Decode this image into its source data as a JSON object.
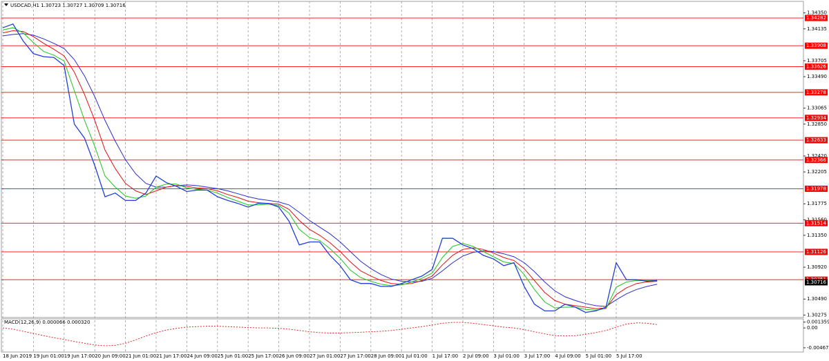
{
  "chart_data": {
    "type": "line",
    "title": "USDCAD,H1  1.30723 1.30727 1.30709 1.30716",
    "categories": [
      "18 Jun 2019",
      null,
      null,
      "19 Jun 01:00",
      null,
      null,
      "19 Jun 17:00",
      null,
      null,
      "20 Jun 09:00",
      null,
      null,
      "21 Jun 01:00",
      null,
      null,
      "21 Jun 17:00",
      null,
      null,
      "24 Jun 09:00",
      null,
      null,
      "25 Jun 01:00",
      null,
      null,
      "25 Jun 17:00",
      null,
      null,
      "26 Jun 09:00",
      null,
      null,
      "27 Jun 01:00",
      null,
      null,
      "27 Jun 17:00",
      null,
      null,
      "28 Jun 09:00",
      null,
      null,
      "1 Jul 01:00",
      null,
      null,
      "1 Jul 17:00",
      null,
      null,
      "2 Jul 09:00",
      null,
      null,
      "3 Jul 01:00",
      null,
      null,
      "3 Jul 17:00",
      null,
      null,
      "4 Jul 09:00",
      null,
      null,
      "5 Jul 01:00",
      null,
      null,
      "5 Jul 17:00",
      null,
      null,
      null,
      null
    ],
    "series": [
      {
        "color": "#1f3fd6",
        "values": [
          1.3415,
          1.342,
          1.3397,
          1.338,
          1.3376,
          1.3375,
          1.3364,
          1.3285,
          1.3266,
          1.3229,
          1.3187,
          1.3192,
          1.3182,
          1.3182,
          1.3192,
          1.3215,
          1.3206,
          1.3201,
          1.3194,
          1.3196,
          1.3196,
          1.3187,
          1.3182,
          1.3178,
          1.3173,
          1.3178,
          1.3178,
          1.3173,
          1.3154,
          1.3122,
          1.3126,
          1.3126,
          1.3108,
          1.3094,
          1.3075,
          1.307,
          1.307,
          1.3066,
          1.3066,
          1.307,
          1.3075,
          1.308,
          1.3089,
          1.3131,
          1.3131,
          1.3122,
          1.3117,
          1.3108,
          1.3103,
          1.3094,
          1.3098,
          1.3066,
          1.3042,
          1.3033,
          1.3033,
          1.3042,
          1.3038,
          1.3031,
          1.3033,
          1.3038,
          1.3098,
          1.3075,
          1.3075,
          1.3073,
          1.3074
        ]
      },
      {
        "color": "#1fc41f",
        "values": [
          1.3412,
          1.3415,
          1.3408,
          1.3395,
          1.3383,
          1.3378,
          1.337,
          1.333,
          1.329,
          1.3255,
          1.3215,
          1.32,
          1.3188,
          1.3185,
          1.3188,
          1.32,
          1.3204,
          1.3204,
          1.3199,
          1.3197,
          1.3196,
          1.3192,
          1.3186,
          1.3181,
          1.3176,
          1.3176,
          1.3177,
          1.3175,
          1.3165,
          1.3143,
          1.3132,
          1.3128,
          1.3117,
          1.3104,
          1.3088,
          1.3078,
          1.3073,
          1.3069,
          1.3067,
          1.3068,
          1.3072,
          1.3077,
          1.3084,
          1.3105,
          1.312,
          1.3124,
          1.312,
          1.3113,
          1.3106,
          1.3099,
          1.3097,
          1.3082,
          1.3062,
          1.3045,
          1.3037,
          1.3038,
          1.3038,
          1.3035,
          1.3034,
          1.3036,
          1.3065,
          1.3072,
          1.3074,
          1.3074,
          1.3074
        ]
      },
      {
        "color": "#e01010",
        "values": [
          1.3408,
          1.3411,
          1.341,
          1.3403,
          1.3394,
          1.3386,
          1.3377,
          1.3355,
          1.3325,
          1.329,
          1.325,
          1.3225,
          1.3205,
          1.3195,
          1.319,
          1.3195,
          1.32,
          1.3202,
          1.3201,
          1.3199,
          1.3198,
          1.3195,
          1.319,
          1.3186,
          1.3181,
          1.3179,
          1.3178,
          1.3177,
          1.317,
          1.3155,
          1.3143,
          1.3135,
          1.3125,
          1.3113,
          1.3099,
          1.3087,
          1.308,
          1.3074,
          1.307,
          1.3069,
          1.307,
          1.3074,
          1.308,
          1.3095,
          1.3108,
          1.3116,
          1.3118,
          1.3116,
          1.3111,
          1.3105,
          1.3101,
          1.309,
          1.3074,
          1.3058,
          1.3047,
          1.3042,
          1.304,
          1.3038,
          1.3036,
          1.3037,
          1.3055,
          1.3064,
          1.307,
          1.3072,
          1.3073
        ]
      },
      {
        "color": "#2b2bcf",
        "values": [
          1.3404,
          1.3406,
          1.3407,
          1.3405,
          1.34,
          1.3394,
          1.3387,
          1.3372,
          1.335,
          1.3322,
          1.329,
          1.3262,
          1.3237,
          1.3218,
          1.3205,
          1.32,
          1.32,
          1.3202,
          1.3203,
          1.3202,
          1.32,
          1.3198,
          1.3195,
          1.3191,
          1.3187,
          1.3184,
          1.3182,
          1.318,
          1.3176,
          1.3166,
          1.3155,
          1.3146,
          1.3137,
          1.3126,
          1.3113,
          1.31,
          1.309,
          1.3082,
          1.3076,
          1.3073,
          1.3072,
          1.3073,
          1.3077,
          1.3087,
          1.3098,
          1.3107,
          1.3112,
          1.3114,
          1.3113,
          1.311,
          1.3106,
          1.3098,
          1.3086,
          1.3072,
          1.306,
          1.3052,
          1.3047,
          1.3043,
          1.304,
          1.3039,
          1.3048,
          1.3056,
          1.3062,
          1.3066,
          1.3069
        ]
      }
    ],
    "ylim": [
      1.3025,
      1.3445
    ],
    "yticks": [
      {
        "value": 1.3435,
        "label": "1.34350"
      },
      1.34135,
      1.33705,
      {
        "value": 1.3349,
        "label": "1.33490"
      },
      1.33065,
      {
        "value": 1.3285,
        "label": "1.32850"
      },
      {
        "value": 1.3242,
        "label": "1.32420"
      },
      1.32205,
      1.31775,
      {
        "value": 1.3156,
        "label": "1.31560"
      },
      {
        "value": 1.3135,
        "label": "1.31350"
      },
      {
        "value": 1.3092,
        "label": "1.30920"
      },
      {
        "value": 1.3049,
        "label": "1.30490"
      },
      1.30275
    ],
    "levels": [
      1.34282,
      1.33908,
      1.33626,
      1.33278,
      1.32934,
      1.32633,
      1.32366,
      1.31978,
      1.31514,
      1.31126,
      1.30751
    ],
    "level_color": "#ff0000",
    "current_price": 1.30716,
    "grid": true,
    "indicator": {
      "label": "MACD(12,26,9) 0.000066 0.000320",
      "color": "#e01010",
      "ylim": [
        -0.0055,
        0.0018
      ],
      "yticks": [
        0.001359,
        {
          "value": 0,
          "label": "0.00"
        },
        -0.004674
      ],
      "values": [
        0,
        -0.0003,
        -0.0008,
        -0.0013,
        -0.0018,
        -0.0023,
        -0.0027,
        -0.0032,
        -0.0036,
        -0.004,
        -0.0042,
        -0.0041,
        -0.0036,
        -0.0028,
        -0.0019,
        -0.0011,
        -0.0005,
        -0.0001,
        0.0002,
        0.0003,
        0.0004,
        0.0004,
        0.0003,
        0.0002,
        0.0001,
        0,
        0,
        -0.0001,
        -0.0003,
        -0.0006,
        -0.0009,
        -0.0011,
        -0.0012,
        -0.0012,
        -0.0011,
        -0.001,
        -0.0009,
        -0.0008,
        -0.0006,
        -0.0003,
        0,
        0.0003,
        0.0007,
        0.0011,
        0.0013,
        0.0013,
        0.0011,
        0.0008,
        0.0005,
        0.0002,
        0,
        -0.0004,
        -0.0009,
        -0.0014,
        -0.0018,
        -0.0019,
        -0.0018,
        -0.0015,
        -0.0011,
        -0.0006,
        0.0002,
        0.0009,
        0.0012,
        0.0011,
        0.0008
      ]
    }
  }
}
